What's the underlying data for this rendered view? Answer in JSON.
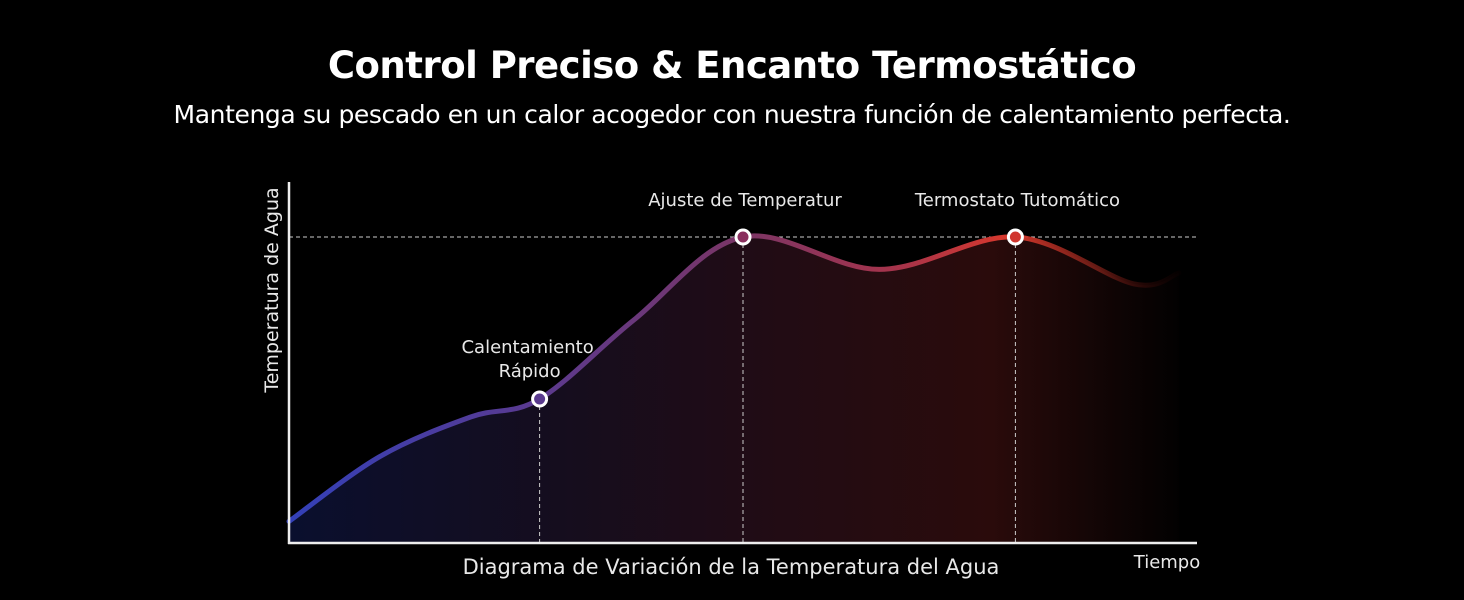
{
  "header": {
    "title": "Control Preciso & Encanto Termostático",
    "subtitle": "Mantenga su pescado en un calor acogedor con nuestra función de calentamiento perfecta."
  },
  "chart_data": {
    "type": "line",
    "title": "Diagrama de Variación de la Temperatura del Agua",
    "xlabel": "Tiempo",
    "ylabel": "Temperatura de Agua",
    "xlim": [
      0,
      100
    ],
    "ylim": [
      0,
      100
    ],
    "grid": false,
    "series": [
      {
        "name": "Temperatura",
        "x": [
          0,
          10,
          20,
          27.6,
          38,
          50,
          65,
          80,
          93,
          98
        ],
        "y": [
          6,
          24,
          35,
          40,
          62,
          85,
          76,
          85,
          72,
          75
        ]
      }
    ],
    "reference_line_y": 85,
    "annotations": [
      {
        "label": "Calentamiento",
        "label2": "Rápido",
        "x": 27.6,
        "y": 40,
        "color": "#5a3a8e"
      },
      {
        "label": "Ajuste de Temperatur",
        "x": 50,
        "y": 85,
        "color": "#8a2f5e"
      },
      {
        "label": "Termostato Tutomático",
        "x": 80,
        "y": 85,
        "color": "#d0352e"
      }
    ],
    "colors": {
      "start": "#3a40b8",
      "mid": "#7a3a7e",
      "end": "#d8382c"
    }
  }
}
